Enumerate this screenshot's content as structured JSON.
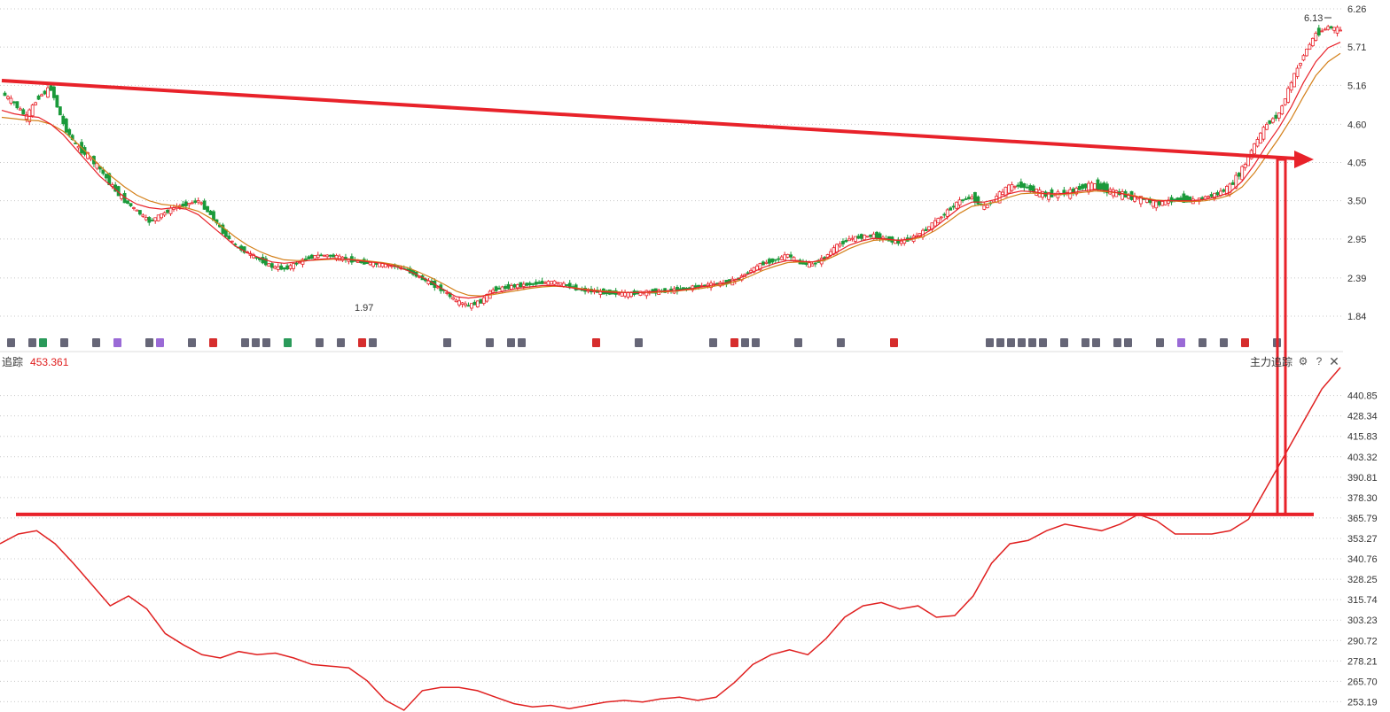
{
  "lower_panel": {
    "label": "追踪",
    "value": "453.361",
    "indicator_name": "主力追踪"
  },
  "chart_data": [
    {
      "type": "candlestick",
      "title": "",
      "y_ticks": [
        "6.26",
        "5.71",
        "5.16",
        "4.60",
        "4.05",
        "3.50",
        "2.95",
        "2.39",
        "1.84"
      ],
      "ylim": [
        1.84,
        6.26
      ],
      "grid": true,
      "annotations": [
        {
          "text": "6.13",
          "role": "high-label"
        },
        {
          "text": "1.97",
          "role": "low-label"
        }
      ],
      "price_path": [
        5.05,
        4.9,
        4.7,
        5.0,
        5.12,
        4.6,
        4.3,
        4.15,
        3.95,
        3.7,
        3.5,
        3.35,
        3.2,
        3.3,
        3.4,
        3.45,
        3.5,
        3.3,
        3.05,
        2.85,
        2.75,
        2.65,
        2.55,
        2.52,
        2.6,
        2.68,
        2.72,
        2.7,
        2.66,
        2.62,
        2.6,
        2.58,
        2.56,
        2.5,
        2.4,
        2.3,
        2.2,
        2.05,
        1.99,
        2.05,
        2.22,
        2.25,
        2.28,
        2.3,
        2.32,
        2.33,
        2.28,
        2.22,
        2.2,
        2.18,
        2.17,
        2.16,
        2.18,
        2.19,
        2.2,
        2.22,
        2.25,
        2.28,
        2.3,
        2.32,
        2.38,
        2.5,
        2.6,
        2.65,
        2.72,
        2.6,
        2.58,
        2.68,
        2.85,
        2.95,
        2.98,
        3.0,
        2.95,
        2.9,
        2.95,
        3.05,
        3.2,
        3.35,
        3.5,
        3.55,
        3.4,
        3.55,
        3.7,
        3.72,
        3.65,
        3.58,
        3.6,
        3.62,
        3.7,
        3.72,
        3.65,
        3.6,
        3.55,
        3.52,
        3.45,
        3.5,
        3.52,
        3.5,
        3.55,
        3.6,
        3.7,
        3.95,
        4.3,
        4.6,
        4.75,
        5.2,
        5.6,
        5.9,
        6.0,
        5.95
      ],
      "ma_short": [
        4.8,
        4.75,
        4.72,
        4.7,
        4.6,
        4.45,
        4.25,
        4.05,
        3.85,
        3.7,
        3.55,
        3.45,
        3.4,
        3.38,
        3.4,
        3.38,
        3.3,
        3.15,
        3.0,
        2.85,
        2.75,
        2.68,
        2.62,
        2.6,
        2.62,
        2.64,
        2.66,
        2.67,
        2.66,
        2.64,
        2.62,
        2.6,
        2.56,
        2.5,
        2.42,
        2.33,
        2.22,
        2.12,
        2.1,
        2.12,
        2.17,
        2.2,
        2.24,
        2.26,
        2.28,
        2.28,
        2.26,
        2.23,
        2.21,
        2.19,
        2.18,
        2.18,
        2.18,
        2.19,
        2.2,
        2.21,
        2.23,
        2.26,
        2.29,
        2.32,
        2.38,
        2.46,
        2.54,
        2.6,
        2.64,
        2.63,
        2.62,
        2.66,
        2.76,
        2.86,
        2.92,
        2.96,
        2.95,
        2.93,
        2.95,
        3.01,
        3.12,
        3.26,
        3.4,
        3.48,
        3.48,
        3.52,
        3.6,
        3.64,
        3.63,
        3.6,
        3.6,
        3.61,
        3.64,
        3.66,
        3.64,
        3.61,
        3.57,
        3.53,
        3.5,
        3.5,
        3.5,
        3.5,
        3.52,
        3.56,
        3.62,
        3.78,
        4.02,
        4.3,
        4.55,
        4.85,
        5.2,
        5.5,
        5.7,
        5.78
      ],
      "ma_long": [
        4.7,
        4.68,
        4.66,
        4.65,
        4.6,
        4.5,
        4.35,
        4.18,
        4.0,
        3.84,
        3.7,
        3.58,
        3.5,
        3.45,
        3.43,
        3.4,
        3.35,
        3.25,
        3.12,
        2.98,
        2.86,
        2.77,
        2.7,
        2.65,
        2.64,
        2.64,
        2.65,
        2.66,
        2.66,
        2.65,
        2.63,
        2.61,
        2.58,
        2.54,
        2.47,
        2.39,
        2.3,
        2.2,
        2.14,
        2.13,
        2.15,
        2.18,
        2.21,
        2.24,
        2.26,
        2.27,
        2.26,
        2.24,
        2.22,
        2.2,
        2.19,
        2.18,
        2.18,
        2.18,
        2.19,
        2.2,
        2.22,
        2.24,
        2.27,
        2.3,
        2.35,
        2.42,
        2.5,
        2.56,
        2.61,
        2.62,
        2.62,
        2.64,
        2.72,
        2.81,
        2.88,
        2.93,
        2.94,
        2.93,
        2.94,
        2.98,
        3.07,
        3.19,
        3.32,
        3.42,
        3.45,
        3.48,
        3.55,
        3.6,
        3.61,
        3.6,
        3.59,
        3.6,
        3.62,
        3.64,
        3.63,
        3.61,
        3.58,
        3.54,
        3.51,
        3.5,
        3.49,
        3.49,
        3.5,
        3.53,
        3.58,
        3.7,
        3.9,
        4.15,
        4.4,
        4.68,
        5.0,
        5.3,
        5.5,
        5.62
      ],
      "trendline": {
        "from": [
          0,
          5.22
        ],
        "to": [
          1480,
          4.05
        ],
        "color": "#e8222a"
      },
      "colors": {
        "up": "#e8222a",
        "down": "#1a9a3a",
        "ma_short": "#e8222a",
        "ma_long": "#d4801a"
      }
    },
    {
      "type": "line",
      "title": "",
      "series": [
        {
          "name": "主力追踪",
          "values": [
            350,
            356,
            358,
            350,
            338,
            325,
            312,
            318,
            310,
            295,
            288,
            282,
            280,
            284,
            282,
            283,
            280,
            276,
            275,
            274,
            266,
            254,
            248,
            260,
            262,
            262,
            260,
            256,
            252,
            250,
            251,
            249,
            251,
            253,
            254,
            253,
            255,
            256,
            254,
            256,
            265,
            276,
            282,
            285,
            282,
            292,
            305,
            312,
            314,
            310,
            312,
            305,
            306,
            318,
            338,
            350,
            352,
            358,
            362,
            360,
            358,
            362,
            368,
            364,
            356,
            356,
            356,
            358,
            365,
            385,
            405,
            425,
            445,
            458
          ],
          "color": "#e02020"
        }
      ],
      "y_ticks": [
        "440.85",
        "428.34",
        "415.83",
        "403.32",
        "390.81",
        "378.30",
        "365.79",
        "353.27",
        "340.76",
        "328.25",
        "315.74",
        "303.23",
        "290.72",
        "278.21",
        "265.70",
        "253.19"
      ],
      "ylim": [
        248,
        458
      ],
      "hline": {
        "value": 365.79,
        "color": "#e8222a"
      },
      "grid": true
    }
  ]
}
